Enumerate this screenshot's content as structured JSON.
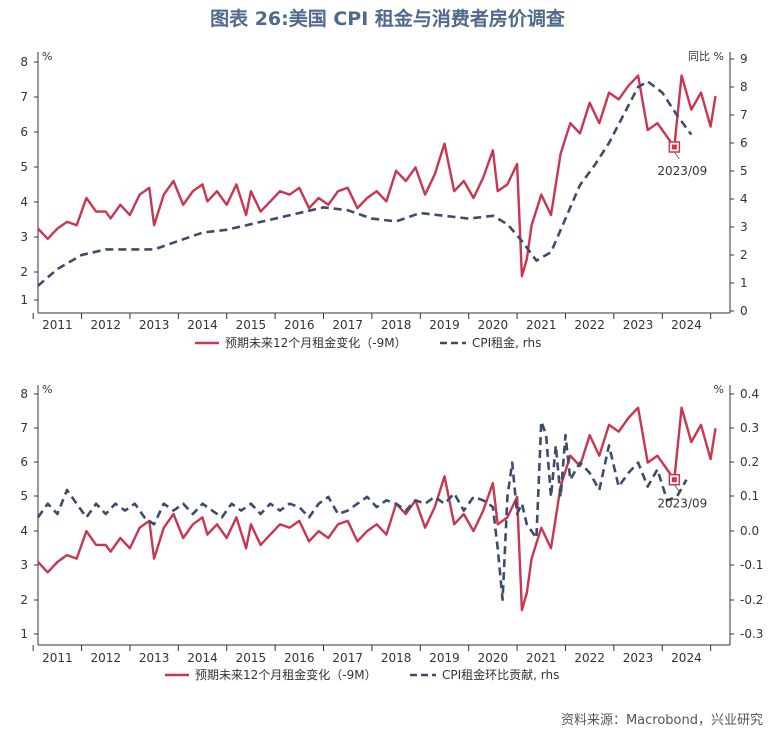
{
  "title": "图表 26:美国 CPI 租金与消费者房价调查",
  "source": "资料来源：Macrobond，兴业研究",
  "colors": {
    "red": "#c8374f",
    "navy": "#3b4d6b",
    "axis": "#333333"
  },
  "chart_data": [
    {
      "type": "line",
      "left_unit": "%",
      "right_unit": "同比 %",
      "x_ticks": [
        "2011",
        "2012",
        "2013",
        "2014",
        "2015",
        "2016",
        "2017",
        "2018",
        "2019",
        "2020",
        "2021",
        "2022",
        "2023",
        "2024"
      ],
      "ylim": [
        0.6,
        8.3
      ],
      "y_ticks": [
        1,
        2,
        3,
        4,
        5,
        6,
        7,
        8
      ],
      "y2lim": [
        0,
        9
      ],
      "y2_ticks": [
        0,
        1,
        2,
        3,
        4,
        5,
        6,
        7,
        8,
        9
      ],
      "annotation": {
        "text": "2023/09",
        "x": 2023.75,
        "y": 5.5
      },
      "legend": [
        "预期未来12个月租金变化（-9M）",
        "CPI租金, rhs"
      ],
      "series": [
        {
          "name": "预期未来12个月租金变化（-9M）",
          "axis": "left",
          "style": "solid",
          "x": [
            2010.6,
            2010.8,
            2011.0,
            2011.2,
            2011.4,
            2011.6,
            2011.8,
            2012.0,
            2012.1,
            2012.3,
            2012.5,
            2012.7,
            2012.9,
            2013.0,
            2013.2,
            2013.4,
            2013.6,
            2013.8,
            2014.0,
            2014.1,
            2014.3,
            2014.5,
            2014.7,
            2014.9,
            2015.0,
            2015.2,
            2015.4,
            2015.6,
            2015.8,
            2016.0,
            2016.2,
            2016.4,
            2016.6,
            2016.8,
            2017.0,
            2017.2,
            2017.4,
            2017.6,
            2017.8,
            2018.0,
            2018.2,
            2018.4,
            2018.6,
            2018.8,
            2019.0,
            2019.2,
            2019.4,
            2019.6,
            2019.8,
            2020.0,
            2020.1,
            2020.3,
            2020.5,
            2020.6,
            2020.7,
            2020.8,
            2021.0,
            2021.2,
            2021.4,
            2021.6,
            2021.8,
            2022.0,
            2022.2,
            2022.4,
            2022.6,
            2022.8,
            2023.0,
            2023.2,
            2023.4,
            2023.6,
            2023.75,
            2023.9,
            2024.1,
            2024.3,
            2024.5,
            2024.6
          ],
          "y": [
            3.1,
            2.8,
            3.1,
            3.3,
            3.2,
            4.0,
            3.6,
            3.6,
            3.4,
            3.8,
            3.5,
            4.1,
            4.3,
            3.2,
            4.1,
            4.5,
            3.8,
            4.2,
            4.4,
            3.9,
            4.2,
            3.8,
            4.4,
            3.5,
            4.2,
            3.6,
            3.9,
            4.2,
            4.1,
            4.3,
            3.7,
            4.0,
            3.8,
            4.2,
            4.3,
            3.7,
            4.0,
            4.2,
            3.9,
            4.8,
            4.5,
            4.9,
            4.1,
            4.7,
            5.6,
            4.2,
            4.5,
            4.0,
            4.6,
            5.4,
            4.2,
            4.4,
            5.0,
            1.7,
            2.2,
            3.2,
            4.1,
            3.5,
            5.3,
            6.2,
            5.9,
            6.8,
            6.2,
            7.1,
            6.9,
            7.3,
            7.6,
            6.0,
            6.2,
            5.8,
            5.5,
            7.6,
            6.6,
            7.1,
            6.1,
            7.0
          ]
        },
        {
          "name": "CPI租金, rhs",
          "axis": "right",
          "style": "dashed",
          "x": [
            2010.6,
            2011.0,
            2011.5,
            2012.0,
            2012.5,
            2013.0,
            2013.5,
            2014.0,
            2014.5,
            2015.0,
            2015.5,
            2016.0,
            2016.5,
            2017.0,
            2017.5,
            2018.0,
            2018.5,
            2019.0,
            2019.5,
            2020.0,
            2020.3,
            2020.6,
            2020.9,
            2021.2,
            2021.5,
            2021.8,
            2022.1,
            2022.4,
            2022.7,
            2023.0,
            2023.2,
            2023.5,
            2023.8,
            2024.1
          ],
          "y": [
            0.9,
            1.5,
            2.0,
            2.2,
            2.2,
            2.2,
            2.5,
            2.8,
            2.9,
            3.1,
            3.3,
            3.5,
            3.7,
            3.6,
            3.3,
            3.2,
            3.5,
            3.4,
            3.3,
            3.4,
            3.1,
            2.5,
            1.8,
            2.1,
            3.3,
            4.5,
            5.2,
            6.0,
            7.0,
            8.0,
            8.2,
            7.8,
            7.0,
            6.3
          ]
        }
      ]
    },
    {
      "type": "line",
      "left_unit": "%",
      "right_unit": "%",
      "x_ticks": [
        "2011",
        "2012",
        "2013",
        "2014",
        "2015",
        "2016",
        "2017",
        "2018",
        "2019",
        "2020",
        "2021",
        "2022",
        "2023",
        "2024"
      ],
      "ylim": [
        0.6,
        8.3
      ],
      "y_ticks": [
        1,
        2,
        3,
        4,
        5,
        6,
        7,
        8
      ],
      "y2lim": [
        -0.335,
        0.41
      ],
      "y2_ticks": [
        "0.4",
        "0.3",
        "0.2",
        "0.1",
        "0.0",
        "-0.1",
        "-0.2",
        "-0.3"
      ],
      "annotation": {
        "text": "2023/09",
        "x": 2023.75,
        "y": 5.5
      },
      "legend": [
        "预期未来12个月租金变化（-9M）",
        "CPI租金环比贡献, rhs"
      ],
      "series": [
        {
          "name": "预期未来12个月租金变化（-9M）",
          "axis": "left",
          "style": "solid",
          "x": [
            2010.6,
            2010.8,
            2011.0,
            2011.2,
            2011.4,
            2011.6,
            2011.8,
            2012.0,
            2012.1,
            2012.3,
            2012.5,
            2012.7,
            2012.9,
            2013.0,
            2013.2,
            2013.4,
            2013.6,
            2013.8,
            2014.0,
            2014.1,
            2014.3,
            2014.5,
            2014.7,
            2014.9,
            2015.0,
            2015.2,
            2015.4,
            2015.6,
            2015.8,
            2016.0,
            2016.2,
            2016.4,
            2016.6,
            2016.8,
            2017.0,
            2017.2,
            2017.4,
            2017.6,
            2017.8,
            2018.0,
            2018.2,
            2018.4,
            2018.6,
            2018.8,
            2019.0,
            2019.2,
            2019.4,
            2019.6,
            2019.8,
            2020.0,
            2020.1,
            2020.3,
            2020.5,
            2020.6,
            2020.7,
            2020.8,
            2021.0,
            2021.2,
            2021.4,
            2021.6,
            2021.8,
            2022.0,
            2022.2,
            2022.4,
            2022.6,
            2022.8,
            2023.0,
            2023.2,
            2023.4,
            2023.6,
            2023.75,
            2023.9,
            2024.1,
            2024.3,
            2024.5,
            2024.6
          ],
          "y": [
            3.1,
            2.8,
            3.1,
            3.3,
            3.2,
            4.0,
            3.6,
            3.6,
            3.4,
            3.8,
            3.5,
            4.1,
            4.3,
            3.2,
            4.1,
            4.5,
            3.8,
            4.2,
            4.4,
            3.9,
            4.2,
            3.8,
            4.4,
            3.5,
            4.2,
            3.6,
            3.9,
            4.2,
            4.1,
            4.3,
            3.7,
            4.0,
            3.8,
            4.2,
            4.3,
            3.7,
            4.0,
            4.2,
            3.9,
            4.8,
            4.5,
            4.9,
            4.1,
            4.7,
            5.6,
            4.2,
            4.5,
            4.0,
            4.6,
            5.4,
            4.2,
            4.4,
            5.0,
            1.7,
            2.2,
            3.2,
            4.1,
            3.5,
            5.3,
            6.2,
            5.9,
            6.8,
            6.2,
            7.1,
            6.9,
            7.3,
            7.6,
            6.0,
            6.2,
            5.8,
            5.5,
            7.6,
            6.6,
            7.1,
            6.1,
            7.0
          ]
        },
        {
          "name": "CPI租金环比贡献, rhs",
          "axis": "right",
          "style": "dashed",
          "x": [
            2010.6,
            2010.8,
            2011.0,
            2011.2,
            2011.4,
            2011.6,
            2011.8,
            2012.0,
            2012.2,
            2012.4,
            2012.6,
            2012.8,
            2013.0,
            2013.2,
            2013.4,
            2013.6,
            2013.8,
            2014.0,
            2014.2,
            2014.4,
            2014.6,
            2014.8,
            2015.0,
            2015.2,
            2015.4,
            2015.6,
            2015.8,
            2016.0,
            2016.2,
            2016.4,
            2016.6,
            2016.8,
            2017.0,
            2017.2,
            2017.4,
            2017.6,
            2017.8,
            2018.0,
            2018.2,
            2018.4,
            2018.6,
            2018.8,
            2019.0,
            2019.2,
            2019.4,
            2019.6,
            2019.8,
            2020.0,
            2020.1,
            2020.2,
            2020.3,
            2020.4,
            2020.5,
            2020.6,
            2020.7,
            2020.8,
            2020.9,
            2021.0,
            2021.1,
            2021.2,
            2021.3,
            2021.4,
            2021.5,
            2021.6,
            2021.8,
            2022.0,
            2022.2,
            2022.4,
            2022.6,
            2022.8,
            2023.0,
            2023.2,
            2023.4,
            2023.6,
            2023.8,
            2024.0
          ],
          "y": [
            0.04,
            0.08,
            0.05,
            0.12,
            0.08,
            0.04,
            0.08,
            0.05,
            0.08,
            0.06,
            0.08,
            0.04,
            0.02,
            0.08,
            0.06,
            0.08,
            0.05,
            0.08,
            0.06,
            0.04,
            0.08,
            0.06,
            0.08,
            0.05,
            0.08,
            0.06,
            0.08,
            0.07,
            0.04,
            0.08,
            0.1,
            0.05,
            0.06,
            0.08,
            0.1,
            0.07,
            0.09,
            0.08,
            0.06,
            0.09,
            0.08,
            0.1,
            0.08,
            0.11,
            0.06,
            0.1,
            0.09,
            0.07,
            -0.05,
            -0.2,
            0.1,
            0.2,
            0.05,
            0.08,
            0.02,
            0.0,
            -0.02,
            0.32,
            0.28,
            0.1,
            0.25,
            0.1,
            0.28,
            0.15,
            0.2,
            0.17,
            0.12,
            0.25,
            0.13,
            0.17,
            0.2,
            0.13,
            0.18,
            0.09,
            0.1,
            0.15
          ]
        }
      ]
    }
  ]
}
